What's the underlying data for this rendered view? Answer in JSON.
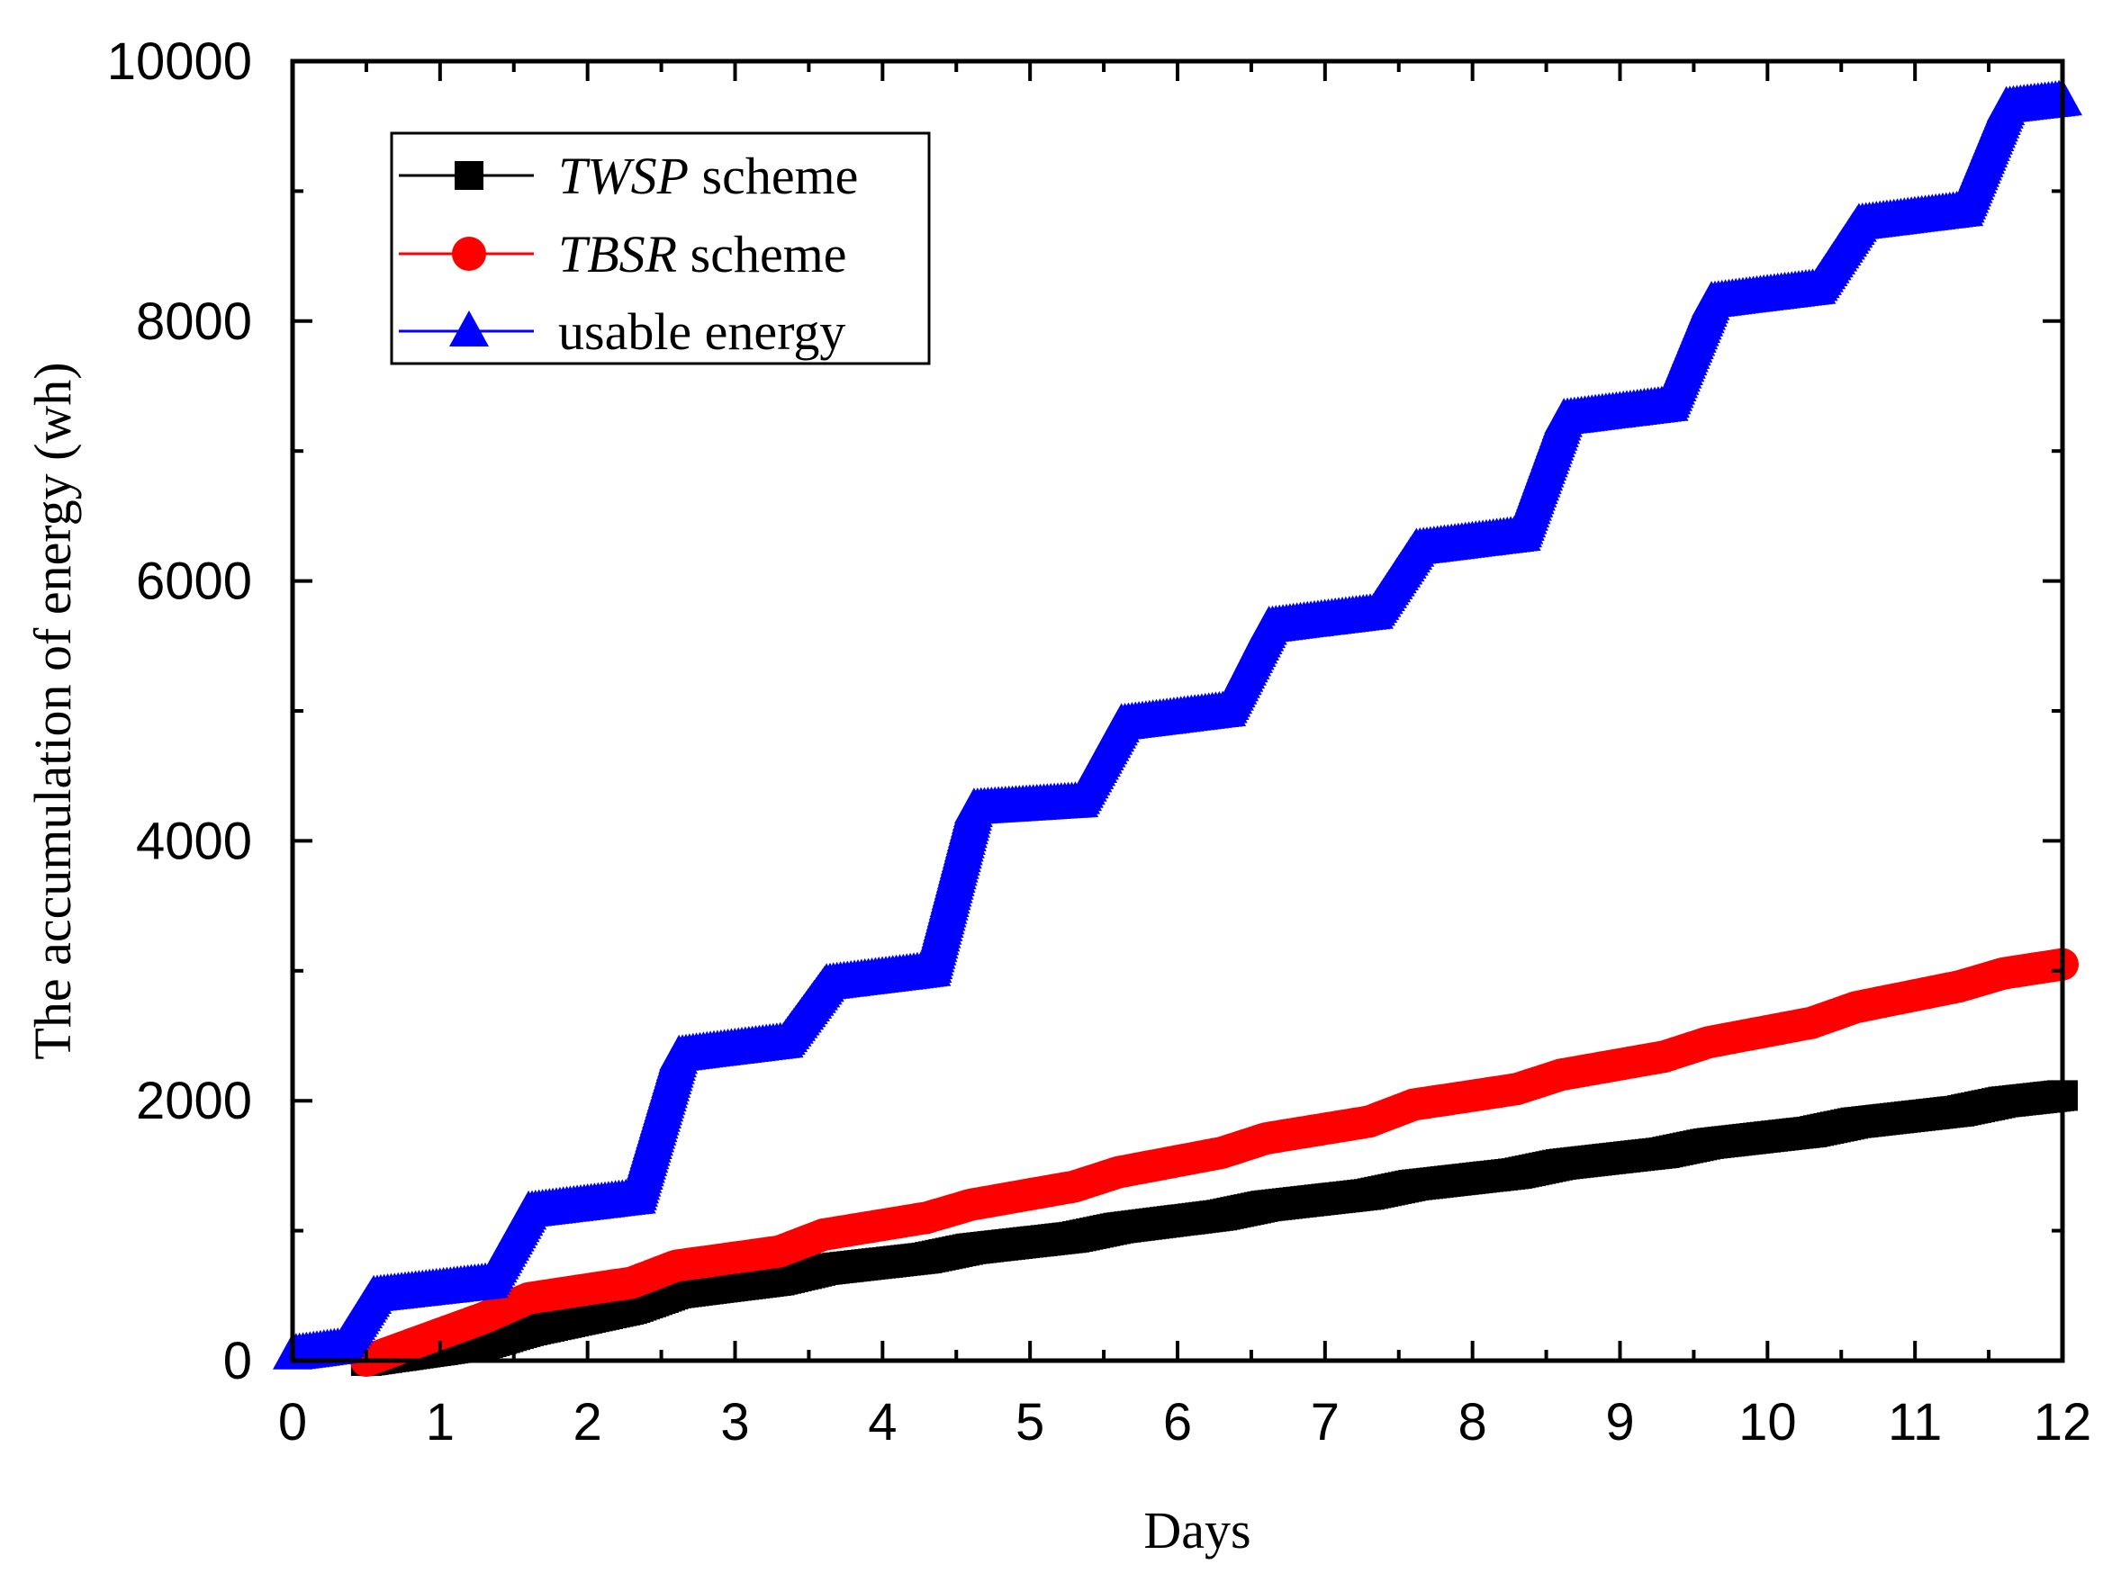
{
  "chart_data": {
    "type": "line",
    "title": "",
    "xlabel": "Days",
    "ylabel": "The accumulation of energy (wh)",
    "xlim": [
      0,
      12
    ],
    "ylim": [
      0,
      10000
    ],
    "x_ticks": [
      "0",
      "1",
      "2",
      "3",
      "4",
      "5",
      "6",
      "7",
      "8",
      "9",
      "10",
      "11",
      "12"
    ],
    "y_ticks": [
      "0",
      "2000",
      "4000",
      "6000",
      "8000",
      "10000"
    ],
    "grid": false,
    "legend_position": "top-left",
    "series": [
      {
        "name": "TWSP scheme",
        "name_italic": "TWSP",
        "name_rest": " scheme",
        "color": "#000000",
        "marker": "square",
        "x": [
          0.5,
          1.3,
          1.6,
          2.3,
          2.6,
          3.3,
          3.6,
          4.3,
          4.6,
          5.3,
          5.6,
          6.3,
          6.6,
          7.3,
          7.6,
          8.3,
          8.6,
          9.3,
          9.6,
          10.3,
          10.6,
          11.3,
          11.6,
          12.0
        ],
        "y": [
          0,
          130,
          230,
          400,
          520,
          620,
          700,
          790,
          860,
          950,
          1020,
          1120,
          1190,
          1280,
          1350,
          1440,
          1510,
          1600,
          1670,
          1760,
          1830,
          1920,
          1990,
          2040
        ]
      },
      {
        "name": "TBSR scheme",
        "name_italic": "TBSR",
        "name_rest": " scheme",
        "color": "#ff0000",
        "marker": "circle",
        "x": [
          0.5,
          1.3,
          1.6,
          2.3,
          2.6,
          3.3,
          3.6,
          4.3,
          4.6,
          5.3,
          5.6,
          6.3,
          6.6,
          7.3,
          7.6,
          8.3,
          8.6,
          9.3,
          9.6,
          10.3,
          10.6,
          11.3,
          11.6,
          12.0
        ],
        "y": [
          0,
          330,
          480,
          600,
          730,
          840,
          970,
          1100,
          1200,
          1340,
          1450,
          1600,
          1710,
          1840,
          1970,
          2090,
          2200,
          2340,
          2450,
          2600,
          2720,
          2880,
          2980,
          3050
        ]
      },
      {
        "name": "usable energy",
        "name_italic": "",
        "name_rest": "usable energy",
        "color": "#0000ff",
        "marker": "triangle",
        "x": [
          0,
          0.33,
          0.55,
          1.33,
          1.6,
          2.33,
          2.62,
          3.33,
          3.62,
          4.33,
          4.62,
          5.33,
          5.62,
          6.33,
          6.62,
          7.33,
          7.62,
          8.33,
          8.62,
          9.33,
          9.62,
          10.33,
          10.62,
          11.33,
          11.62,
          12.0
        ],
        "y": [
          50,
          100,
          500,
          600,
          1150,
          1250,
          2350,
          2450,
          2900,
          3000,
          4250,
          4300,
          4900,
          5000,
          5650,
          5750,
          6250,
          6350,
          7250,
          7350,
          8150,
          8250,
          8750,
          8850,
          9650,
          9700
        ]
      }
    ]
  }
}
